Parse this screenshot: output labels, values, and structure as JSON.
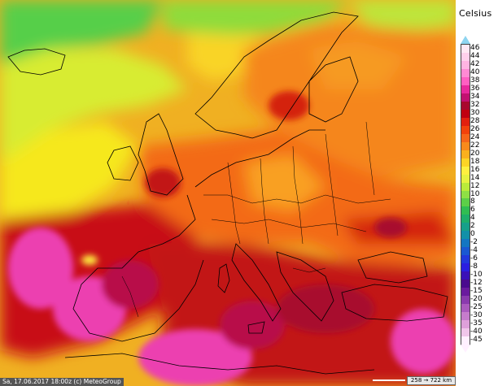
{
  "map": {
    "attribution": "Sa, 17.06.2017 18:00z (c) MeteoGroup",
    "scale_text": "258 → 722 km",
    "region": "Europe"
  },
  "legend": {
    "title": "Celsius",
    "unit": "°C",
    "labels": [
      "46",
      "44",
      "42",
      "40",
      "38",
      "36",
      "34",
      "32",
      "30",
      "28",
      "26",
      "24",
      "22",
      "20",
      "18",
      "16",
      "14",
      "12",
      "10",
      "8",
      "6",
      "4",
      "2",
      "0",
      "-2",
      "-4",
      "-6",
      "-8",
      "-10",
      "-12",
      "-15",
      "-20",
      "-25",
      "-30",
      "-35",
      "-40",
      "-45"
    ],
    "colors": [
      "#ffe8f4",
      "#ffd0ec",
      "#ffb4e2",
      "#ff8ad4",
      "#ff5fc2",
      "#e8289c",
      "#c21070",
      "#a8082e",
      "#c00010",
      "#e2200e",
      "#f2420c",
      "#f6661a",
      "#f98a1c",
      "#fbb01e",
      "#fdd426",
      "#fff040",
      "#e6f240",
      "#baeb3a",
      "#8ee044",
      "#5ccf48",
      "#30bd52",
      "#1eae6a",
      "#16a08a",
      "#1290a8",
      "#1476c2",
      "#1a58d2",
      "#2238dc",
      "#2a1ee0",
      "#3a10b8",
      "#4a0a8e",
      "#6a1a9e",
      "#8a3aae",
      "#aa5abe",
      "#c67ccc",
      "#dea0da",
      "#f0c6ea",
      "#fff0ff"
    ]
  },
  "colors": {
    "ocean_north": "#8fdf3c",
    "ocean_mid": "#f7e81e",
    "land_warm": "#f5861c",
    "land_hot": "#d62212",
    "land_veryhot": "#b8084a",
    "land_extreme": "#ec3fb0",
    "border": "#000000"
  }
}
